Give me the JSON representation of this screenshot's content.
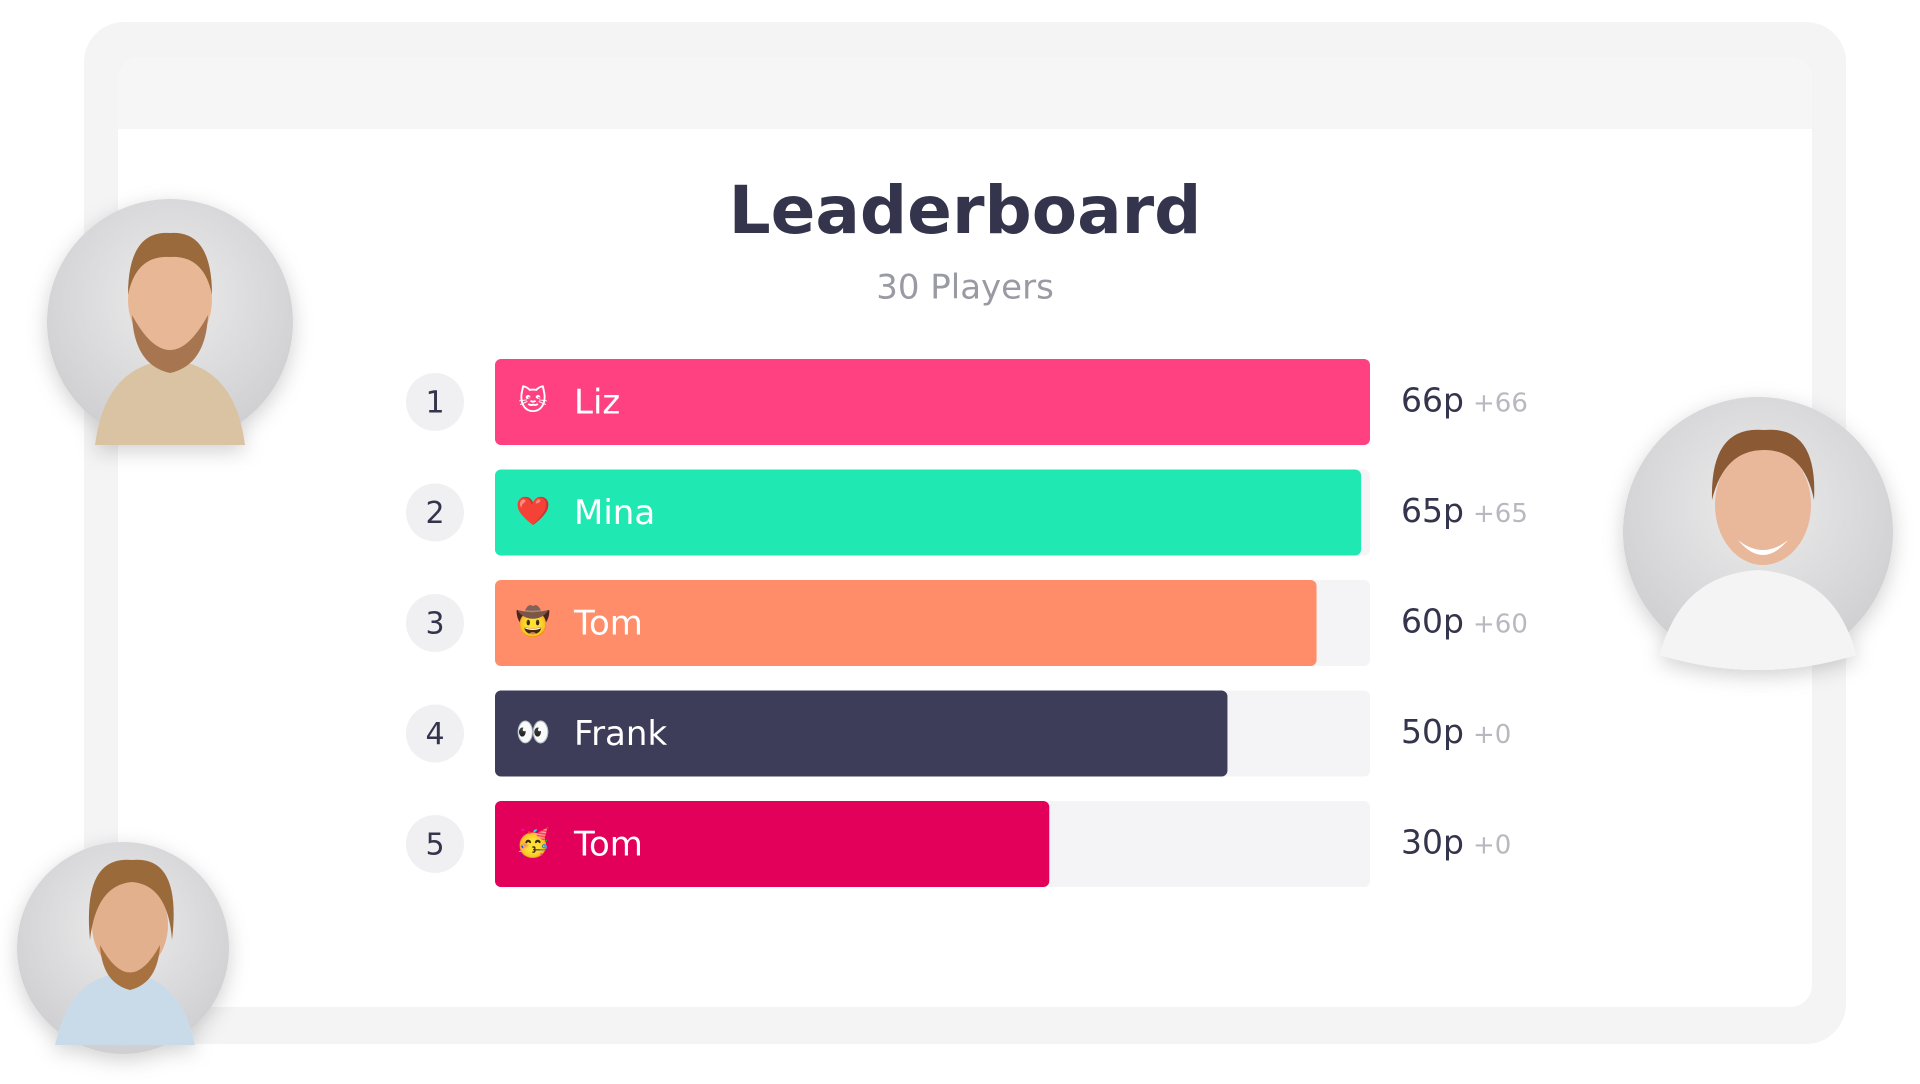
{
  "title": "Leaderboard",
  "subtitle": "30 Players",
  "rows": [
    {
      "rank": 1,
      "emoji": "🐱",
      "name": "Liz",
      "score": 66,
      "score_label": "66p",
      "delta": "+66",
      "color": "#ff4081"
    },
    {
      "rank": 2,
      "emoji": "❤️",
      "name": "Mina",
      "score": 65,
      "score_label": "65p",
      "delta": "+65",
      "color": "#20e8b2"
    },
    {
      "rank": 3,
      "emoji": "🤠",
      "name": "Tom",
      "score": 60,
      "score_label": "60p",
      "delta": "+60",
      "color": "#ff8d6a"
    },
    {
      "rank": 4,
      "emoji": "👀",
      "name": "Frank",
      "score": 50,
      "score_label": "50p",
      "delta": "+0",
      "color": "#3d3d59"
    },
    {
      "rank": 5,
      "emoji": "🥳",
      "name": "Tom",
      "score": 30,
      "score_label": "30p",
      "delta": "+0",
      "color": "#e3005a"
    }
  ]
}
